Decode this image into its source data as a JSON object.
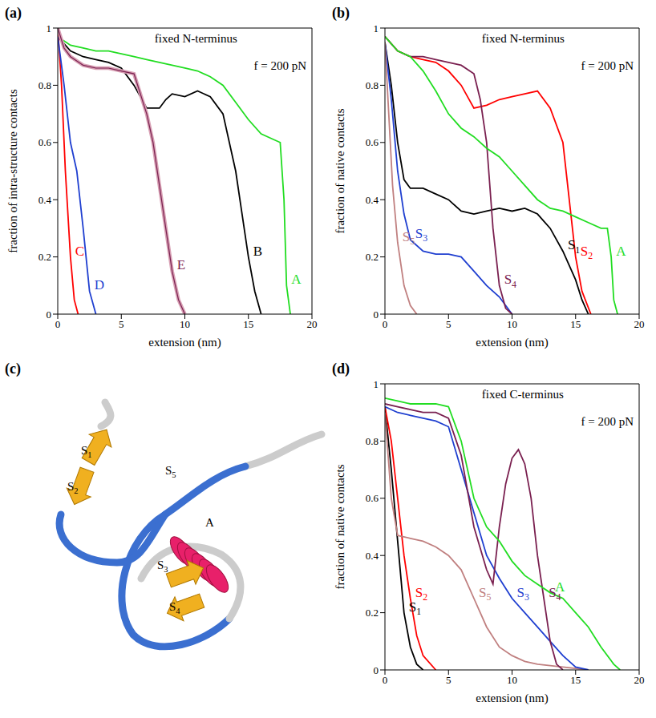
{
  "chart_data": [
    {
      "panel_label": "(a)",
      "type": "line",
      "annotations": [
        "fixed N-terminus",
        "f = 200 pN"
      ],
      "x_label": "extension (nm)",
      "y_label": "fraction of intra-structure contacts",
      "xlim": [
        0,
        20
      ],
      "xticks": [
        0,
        5,
        10,
        15,
        20
      ],
      "ylim": [
        0,
        1
      ],
      "yticks": [
        0,
        0.2,
        0.4,
        0.6,
        0.8,
        1
      ],
      "series": [
        {
          "name": "A",
          "color": "#22dd22",
          "line_style": "solid",
          "x": [
            0,
            1,
            2,
            3,
            4,
            5,
            6,
            7,
            8,
            9,
            10,
            11,
            12,
            13,
            14,
            15,
            16,
            17,
            17.5,
            17.8,
            18,
            18.3
          ],
          "values": [
            0.97,
            0.94,
            0.93,
            0.92,
            0.92,
            0.91,
            0.9,
            0.89,
            0.88,
            0.87,
            0.86,
            0.85,
            0.83,
            0.8,
            0.74,
            0.68,
            0.63,
            0.61,
            0.6,
            0.4,
            0.1,
            0
          ]
        },
        {
          "name": "B",
          "color": "#000000",
          "line_style": "solid",
          "x": [
            0,
            1,
            2,
            3,
            4,
            5,
            6,
            7,
            8,
            8.5,
            9,
            10,
            11,
            12,
            13,
            14,
            15,
            15.5,
            16
          ],
          "values": [
            0.97,
            0.92,
            0.9,
            0.89,
            0.88,
            0.86,
            0.8,
            0.72,
            0.72,
            0.75,
            0.77,
            0.76,
            0.78,
            0.76,
            0.7,
            0.5,
            0.2,
            0.08,
            0
          ]
        },
        {
          "name": "C",
          "color": "#ff0000",
          "line_style": "solid",
          "x": [
            0,
            0.3,
            0.6,
            1,
            1.3,
            1.6
          ],
          "values": [
            1,
            0.8,
            0.5,
            0.2,
            0.05,
            0
          ]
        },
        {
          "name": "D",
          "color": "#1f3fd0",
          "line_style": "solid",
          "x": [
            0,
            0.5,
            1,
            1.5,
            2,
            2.5,
            3
          ],
          "values": [
            0.97,
            0.8,
            0.6,
            0.5,
            0.3,
            0.08,
            0
          ]
        },
        {
          "name": "E",
          "color": "#7a2050",
          "line_style": "double",
          "x": [
            0,
            0.5,
            1,
            2,
            3,
            4,
            5,
            6,
            7,
            7.5,
            8,
            8.5,
            9,
            9.5,
            10
          ],
          "values": [
            1,
            0.93,
            0.9,
            0.87,
            0.86,
            0.86,
            0.85,
            0.84,
            0.7,
            0.6,
            0.45,
            0.3,
            0.15,
            0.05,
            0
          ]
        }
      ]
    },
    {
      "panel_label": "(b)",
      "type": "line",
      "annotations": [
        "fixed N-terminus",
        "f = 200 pN"
      ],
      "x_label": "extension (nm)",
      "y_label": "fraction of native contacts",
      "xlim": [
        0,
        20
      ],
      "xticks": [
        0,
        5,
        10,
        15,
        20
      ],
      "ylim": [
        0,
        1
      ],
      "yticks": [
        0,
        0.2,
        0.4,
        0.6,
        0.8,
        1
      ],
      "series": [
        {
          "name": "S1",
          "color": "#000000",
          "line_style": "solid",
          "x": [
            0,
            0.5,
            1,
            1.5,
            2,
            3,
            4,
            5,
            6,
            7,
            8,
            9,
            10,
            11,
            12,
            13,
            14,
            15,
            15.5,
            16
          ],
          "values": [
            0.95,
            0.8,
            0.6,
            0.47,
            0.44,
            0.44,
            0.42,
            0.4,
            0.36,
            0.35,
            0.36,
            0.37,
            0.36,
            0.37,
            0.35,
            0.3,
            0.22,
            0.12,
            0.05,
            0
          ]
        },
        {
          "name": "S2",
          "color": "#ff0000",
          "line_style": "solid",
          "x": [
            0,
            1,
            2,
            3,
            4,
            5,
            6,
            7,
            8,
            9,
            10,
            11,
            12,
            13,
            14,
            14.5,
            15,
            15.5,
            16.2
          ],
          "values": [
            0.97,
            0.92,
            0.9,
            0.89,
            0.88,
            0.85,
            0.8,
            0.72,
            0.73,
            0.75,
            0.76,
            0.77,
            0.78,
            0.72,
            0.6,
            0.4,
            0.2,
            0.08,
            0
          ]
        },
        {
          "name": "S3",
          "color": "#1f3fd0",
          "line_style": "solid",
          "x": [
            0,
            0.5,
            1,
            1.5,
            2,
            3,
            4,
            5,
            6,
            7,
            8,
            9,
            10
          ],
          "values": [
            0.95,
            0.75,
            0.5,
            0.35,
            0.26,
            0.22,
            0.21,
            0.21,
            0.2,
            0.15,
            0.1,
            0.06,
            0
          ]
        },
        {
          "name": "S4",
          "color": "#7a2050",
          "line_style": "solid",
          "x": [
            0,
            1,
            2,
            3,
            4,
            5,
            6,
            7,
            7.5,
            8,
            8.5,
            9,
            9.5,
            10
          ],
          "values": [
            0.97,
            0.92,
            0.9,
            0.9,
            0.89,
            0.88,
            0.87,
            0.84,
            0.75,
            0.6,
            0.3,
            0.1,
            0.02,
            0
          ]
        },
        {
          "name": "S5",
          "color": "#c08080",
          "line_style": "solid",
          "x": [
            0,
            0.3,
            0.6,
            1,
            1.5,
            2,
            2.5
          ],
          "values": [
            0.95,
            0.7,
            0.45,
            0.25,
            0.1,
            0.03,
            0
          ]
        },
        {
          "name": "A",
          "color": "#22dd22",
          "line_style": "solid",
          "x": [
            0,
            1,
            2,
            3,
            4,
            5,
            6,
            7,
            8,
            9,
            10,
            11,
            12,
            13,
            14,
            15,
            16,
            17,
            17.5,
            17.8,
            18,
            18.3
          ],
          "values": [
            0.97,
            0.92,
            0.9,
            0.85,
            0.78,
            0.7,
            0.65,
            0.62,
            0.58,
            0.55,
            0.5,
            0.45,
            0.4,
            0.37,
            0.36,
            0.34,
            0.32,
            0.3,
            0.3,
            0.2,
            0.05,
            0
          ]
        }
      ]
    },
    {
      "panel_label": "(c)",
      "type": "diagram",
      "labels": [
        "S1",
        "S2",
        "S5",
        "A",
        "S3",
        "S4"
      ]
    },
    {
      "panel_label": "(d)",
      "type": "line",
      "annotations": [
        "fixed C-terminus",
        "f = 200 pN"
      ],
      "x_label": "extension (nm)",
      "y_label": "fraction of native contacts",
      "xlim": [
        0,
        20
      ],
      "xticks": [
        0,
        5,
        10,
        15,
        20
      ],
      "ylim": [
        0,
        1
      ],
      "yticks": [
        0,
        0.2,
        0.4,
        0.6,
        0.8,
        1
      ],
      "series": [
        {
          "name": "S1",
          "color": "#000000",
          "line_style": "solid",
          "x": [
            0,
            0.5,
            1,
            1.5,
            2,
            2.5,
            3
          ],
          "values": [
            0.92,
            0.7,
            0.45,
            0.2,
            0.08,
            0.02,
            0
          ]
        },
        {
          "name": "S2",
          "color": "#ff0000",
          "line_style": "solid",
          "x": [
            0,
            0.5,
            1,
            1.5,
            2,
            2.5,
            3,
            4
          ],
          "values": [
            0.92,
            0.8,
            0.6,
            0.4,
            0.25,
            0.12,
            0.05,
            0
          ]
        },
        {
          "name": "S5",
          "color": "#c08080",
          "line_style": "solid",
          "x": [
            0,
            0.5,
            1,
            2,
            3,
            4,
            5,
            6,
            7,
            8,
            9,
            10,
            11,
            12,
            14,
            16
          ],
          "values": [
            0.9,
            0.6,
            0.47,
            0.46,
            0.45,
            0.43,
            0.4,
            0.35,
            0.25,
            0.15,
            0.08,
            0.05,
            0.03,
            0.02,
            0.01,
            0
          ]
        },
        {
          "name": "S3",
          "color": "#1f3fd0",
          "line_style": "solid",
          "x": [
            0,
            1,
            2,
            3,
            4,
            5,
            6,
            7,
            8,
            9,
            10,
            11,
            12,
            13,
            14,
            15,
            16
          ],
          "values": [
            0.92,
            0.9,
            0.89,
            0.88,
            0.87,
            0.85,
            0.7,
            0.55,
            0.4,
            0.32,
            0.25,
            0.2,
            0.15,
            0.1,
            0.05,
            0.01,
            0
          ]
        },
        {
          "name": "S4",
          "color": "#7a2050",
          "line_style": "solid",
          "x": [
            0,
            1,
            2,
            3,
            4,
            5,
            6,
            7,
            8,
            8.5,
            9,
            9.5,
            10,
            10.5,
            11,
            11.5,
            12,
            12.5,
            13,
            13.5,
            14
          ],
          "values": [
            0.93,
            0.92,
            0.91,
            0.9,
            0.9,
            0.88,
            0.75,
            0.5,
            0.35,
            0.3,
            0.5,
            0.65,
            0.74,
            0.77,
            0.72,
            0.6,
            0.4,
            0.25,
            0.1,
            0.02,
            0
          ]
        },
        {
          "name": "A",
          "color": "#22dd22",
          "line_style": "solid",
          "x": [
            0,
            1,
            2,
            3,
            4,
            5,
            6,
            7,
            8,
            9,
            10,
            11,
            12,
            13,
            14,
            15,
            16,
            17,
            18,
            18.5
          ],
          "values": [
            0.95,
            0.94,
            0.93,
            0.93,
            0.93,
            0.92,
            0.8,
            0.6,
            0.5,
            0.45,
            0.38,
            0.33,
            0.3,
            0.27,
            0.25,
            0.2,
            0.15,
            0.08,
            0.02,
            0
          ]
        }
      ]
    }
  ]
}
